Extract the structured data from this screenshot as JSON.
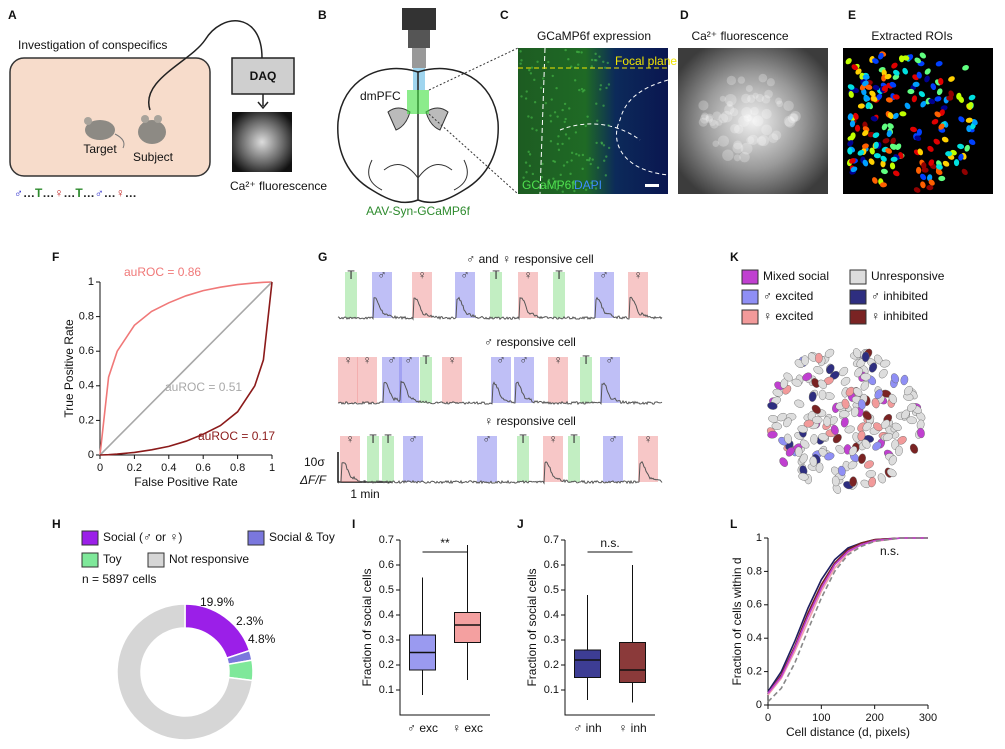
{
  "panel_letters": [
    "A",
    "B",
    "C",
    "D",
    "E",
    "F",
    "G",
    "K",
    "H",
    "I",
    "J",
    "L"
  ],
  "A": {
    "title": "Investigation of conspecifics",
    "daq": "DAQ",
    "target": "Target",
    "subject": "Subject",
    "image_label": "Ca²⁺ fluorescence",
    "sequence": [
      {
        "text": "♂",
        "color": "#2a2acc"
      },
      {
        "text": "…",
        "color": "#222222"
      },
      {
        "text": "T",
        "color": "#2e8b2e"
      },
      {
        "text": "…",
        "color": "#222222"
      },
      {
        "text": "♀",
        "color": "#c02020"
      },
      {
        "text": "…",
        "color": "#222222"
      },
      {
        "text": "T",
        "color": "#2e8b2e"
      },
      {
        "text": "…",
        "color": "#222222"
      },
      {
        "text": "♂",
        "color": "#2a2acc"
      },
      {
        "text": "…",
        "color": "#222222"
      },
      {
        "text": "♀",
        "color": "#c02020"
      },
      {
        "text": "…",
        "color": "#222222"
      }
    ]
  },
  "B": {
    "region": "dmPFC",
    "virus": "AAV-Syn-GCaMP6f"
  },
  "C": {
    "title": "GCaMP6f expression",
    "focal_plane": "Focal plane",
    "stain_1": "GCaMP6f",
    "stain_2": "DAPI"
  },
  "D": {
    "title": "Ca²⁺ fluorescence"
  },
  "E": {
    "title": "Extracted ROIs"
  },
  "G": {
    "rows": [
      {
        "title": "♂ and ♀ responsive cell",
        "events": [
          "T",
          "♂",
          "♀",
          "♂",
          "T",
          "♀",
          "T",
          "♂",
          "♀"
        ]
      },
      {
        "title": "♂ responsive cell",
        "events": [
          "♀",
          "♀",
          "♂",
          "♂",
          "T",
          "♀",
          "♂",
          "♂",
          "♀",
          "T",
          "♂"
        ]
      },
      {
        "title": "♀ responsive cell",
        "events": [
          "♀",
          "T",
          "T",
          "♂",
          "♂",
          "T",
          "♀",
          "T",
          "♂",
          "♀"
        ]
      }
    ],
    "event_colors": {
      "♂": "#8b8bee",
      "♀": "#f09999",
      "T": "#8fe08f"
    },
    "scale_y": "10σ",
    "scale_y_unit": "ΔF/F",
    "scale_x": "1 min"
  },
  "K": {
    "legend": [
      {
        "label": "Mixed social",
        "color": "#c03fd0"
      },
      {
        "label": "Unresponsive",
        "color": "#dddddd"
      },
      {
        "label": "♂ excited",
        "color": "#8f8ff5"
      },
      {
        "label": "♂ inhibited",
        "color": "#2e2e80"
      },
      {
        "label": "♀ excited",
        "color": "#f29a9a"
      },
      {
        "label": "♀ inhibited",
        "color": "#7a2323"
      }
    ]
  },
  "chart_data": [
    {
      "type": "line",
      "xlabel": "False Positive Rate",
      "ylabel": "True Positive Rate",
      "xlim": [
        0,
        1
      ],
      "ylim": [
        0,
        1
      ],
      "xticks": [
        0,
        0.2,
        0.4,
        0.6,
        0.8,
        1
      ],
      "yticks": [
        0,
        0.2,
        0.4,
        0.6,
        0.8,
        1
      ],
      "x": [
        0,
        0.05,
        0.1,
        0.2,
        0.3,
        0.4,
        0.5,
        0.6,
        0.7,
        0.8,
        0.9,
        0.95,
        1
      ],
      "series": [
        {
          "name": "auROC = 0.86",
          "color": "#f07878",
          "values": [
            0,
            0.45,
            0.6,
            0.75,
            0.83,
            0.88,
            0.92,
            0.95,
            0.97,
            0.985,
            0.995,
            0.998,
            1
          ]
        },
        {
          "name": "auROC = 0.51",
          "color": "#a8a8a8",
          "values": [
            0,
            0.05,
            0.1,
            0.2,
            0.3,
            0.4,
            0.5,
            0.6,
            0.7,
            0.8,
            0.9,
            0.95,
            1
          ]
        },
        {
          "name": "auROC = 0.17",
          "color": "#8b1a1a",
          "values": [
            0,
            0.002,
            0.005,
            0.015,
            0.03,
            0.05,
            0.08,
            0.12,
            0.17,
            0.25,
            0.4,
            0.55,
            1
          ]
        }
      ]
    },
    {
      "type": "pie",
      "categories": [
        "Social (♂ or ♀)",
        "Social & Toy",
        "Toy",
        "Not responsive"
      ],
      "values": [
        19.9,
        2.3,
        4.8,
        73.0
      ],
      "value_labels": [
        "19.9%",
        "2.3%",
        "4.8%",
        null
      ],
      "colors": [
        "#9b1fe8",
        "#7a77dd",
        "#7fe89a",
        "#d6d6d6"
      ],
      "note": "n = 5897 cells"
    },
    {
      "type": "box",
      "ylabel": "Fraction of social cells",
      "categories": [
        "♂ exc",
        "♀ exc"
      ],
      "ylim": [
        0,
        0.7
      ],
      "yticks": [
        0.1,
        0.2,
        0.3,
        0.4,
        0.5,
        0.6,
        0.7
      ],
      "annotation": "**",
      "boxes": [
        {
          "whislo": 0.08,
          "q1": 0.18,
          "med": 0.25,
          "q3": 0.32,
          "whishi": 0.55,
          "color": "#9a9af0"
        },
        {
          "whislo": 0.14,
          "q1": 0.29,
          "med": 0.36,
          "q3": 0.41,
          "whishi": 0.68,
          "color": "#f4a0a0"
        }
      ]
    },
    {
      "type": "box",
      "ylabel": "Fraction of social cells",
      "categories": [
        "♂ inh",
        "♀ inh"
      ],
      "ylim": [
        0,
        0.7
      ],
      "yticks": [
        0.1,
        0.2,
        0.3,
        0.4,
        0.5,
        0.6,
        0.7
      ],
      "annotation": "n.s.",
      "boxes": [
        {
          "whislo": 0.06,
          "q1": 0.15,
          "med": 0.22,
          "q3": 0.26,
          "whishi": 0.48,
          "color": "#3d3d94"
        },
        {
          "whislo": 0.05,
          "q1": 0.13,
          "med": 0.18,
          "q3": 0.29,
          "whishi": 0.6,
          "color": "#8b3a3a"
        }
      ]
    },
    {
      "type": "line",
      "xlabel": "Cell distance (d, pixels)",
      "ylabel": "Fraction of cells within d",
      "xlim": [
        0,
        300
      ],
      "ylim": [
        0,
        1
      ],
      "xticks": [
        0,
        100,
        200,
        300
      ],
      "yticks": [
        0,
        0.2,
        0.4,
        0.6,
        0.8,
        1
      ],
      "annotation": "n.s.",
      "x": [
        0,
        25,
        50,
        75,
        100,
        125,
        150,
        175,
        200,
        250,
        300
      ],
      "series": [
        {
          "color": "#1e1e60",
          "values": [
            0.08,
            0.2,
            0.38,
            0.58,
            0.75,
            0.87,
            0.94,
            0.97,
            0.99,
            1,
            1
          ]
        },
        {
          "color": "#7a2323",
          "values": [
            0.07,
            0.18,
            0.35,
            0.55,
            0.72,
            0.85,
            0.93,
            0.97,
            0.99,
            1,
            1
          ]
        },
        {
          "color": "#f0a0b0",
          "values": [
            0.06,
            0.16,
            0.32,
            0.5,
            0.68,
            0.82,
            0.91,
            0.96,
            0.98,
            1,
            1
          ]
        },
        {
          "color": "#c03fd0",
          "values": [
            0.07,
            0.17,
            0.34,
            0.53,
            0.7,
            0.84,
            0.92,
            0.96,
            0.985,
            1,
            1
          ]
        },
        {
          "color": "#888888",
          "dash": true,
          "values": [
            0.02,
            0.1,
            0.25,
            0.45,
            0.64,
            0.8,
            0.9,
            0.95,
            0.98,
            1,
            1
          ]
        }
      ]
    }
  ]
}
